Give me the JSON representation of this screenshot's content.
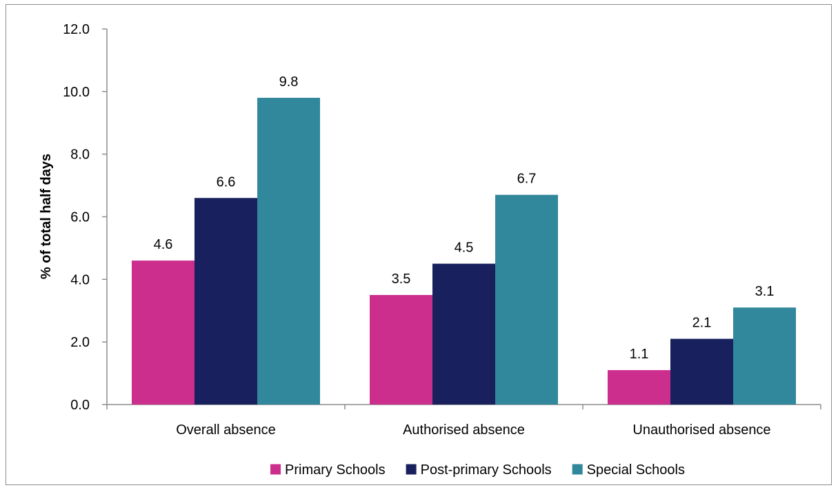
{
  "chart_data": {
    "type": "bar",
    "title": "",
    "xlabel": "",
    "ylabel": "% of total half days",
    "ylim": [
      0,
      12
    ],
    "yticks": [
      "0.0",
      "2.0",
      "4.0",
      "6.0",
      "8.0",
      "10.0",
      "12.0"
    ],
    "ytick_values": [
      0,
      2,
      4,
      6,
      8,
      10,
      12
    ],
    "grid": false,
    "legend_position": "bottom",
    "categories": [
      "Overall absence",
      "Authorised absence",
      "Unauthorised absence"
    ],
    "series": [
      {
        "name": "Primary Schools",
        "color": "#CC2E8E",
        "values": [
          4.6,
          3.5,
          1.1
        ],
        "labels": [
          "4.6",
          "3.5",
          "1.1"
        ]
      },
      {
        "name": "Post-primary Schools",
        "color": "#18215E",
        "values": [
          6.6,
          4.5,
          2.1
        ],
        "labels": [
          "6.6",
          "4.5",
          "2.1"
        ]
      },
      {
        "name": "Special Schools",
        "color": "#31879B",
        "values": [
          9.8,
          6.7,
          3.1
        ],
        "labels": [
          "9.8",
          "6.7",
          "3.1"
        ]
      }
    ]
  }
}
